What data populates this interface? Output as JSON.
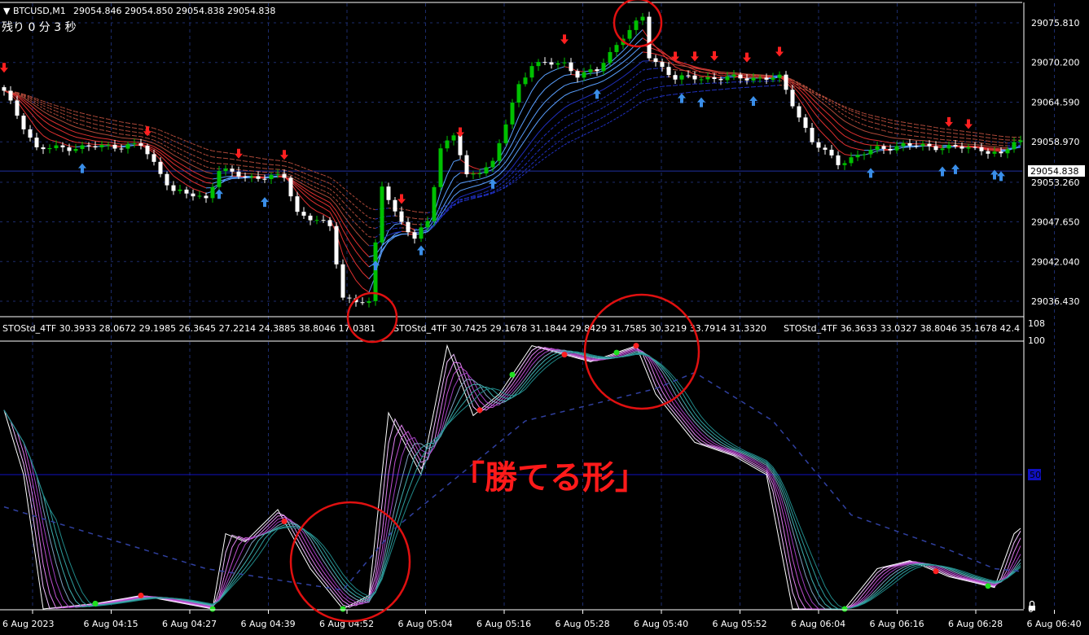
{
  "header": {
    "symbol": "▼ BTCUSD,M1",
    "ohlc": "29054.846 29054.850 29054.838 29054.838",
    "timer": "残り 0 分 3 秒"
  },
  "indicator_header": {
    "labels": [
      "STOStd_4TF 30.3933 28.0672 29.1985 26.3645 27.2214 24.3885 38.8046 17.0381",
      "STOStd_4TF 30.7425 29.1678 31.1844 29.8429 31.7585 30.3219 33.7914 31.3320",
      "STOStd_4TF 36.3633 33.0327 38.8046 35.1678 42.4"
    ]
  },
  "annotation": "「勝てる形」",
  "colors": {
    "background": "#000000",
    "bull_candle": "#00c000",
    "bear_candle": "#ffffff",
    "sell_arrow": "#ff2020",
    "buy_arrow": "#3a8ee8",
    "grid": "#1c2c6c",
    "highlight_circle": "#e01010",
    "annotation": "#ff1a1a"
  },
  "chart_data": [
    {
      "type": "candlestick",
      "symbol": "BTCUSD",
      "timeframe": "M1",
      "y_ticks": [
        "29075.810",
        "29070.200",
        "29064.590",
        "29058.970",
        "29053.260",
        "29047.650",
        "29042.040",
        "29036.430"
      ],
      "ylim": [
        29036.43,
        29075.81
      ],
      "current_price": "29054.838",
      "x_ticks": [
        "6 Aug 2023",
        "6 Aug 04:15",
        "6 Aug 04:27",
        "6 Aug 04:39",
        "6 Aug 04:52",
        "6 Aug 05:04",
        "6 Aug 05:16",
        "6 Aug 05:28",
        "6 Aug 05:40",
        "6 Aug 05:52",
        "6 Aug 06:04",
        "6 Aug 06:16",
        "6 Aug 06:28",
        "6 Aug 06:40"
      ],
      "close_samples": [
        [
          0,
          29066
        ],
        [
          5,
          29058
        ],
        [
          21,
          29058.5
        ],
        [
          26,
          29052
        ],
        [
          31,
          29051
        ],
        [
          33,
          29055
        ],
        [
          37,
          29054
        ],
        [
          43,
          29054
        ],
        [
          45,
          29049
        ],
        [
          50,
          29047
        ],
        [
          52,
          29037
        ],
        [
          56,
          29036
        ],
        [
          58,
          29053
        ],
        [
          60,
          29049
        ],
        [
          63,
          29045
        ],
        [
          65,
          29048
        ],
        [
          67,
          29058
        ],
        [
          69,
          29060
        ],
        [
          71,
          29054
        ],
        [
          75,
          29056
        ],
        [
          79,
          29067
        ],
        [
          81,
          29070
        ],
        [
          86,
          29070
        ],
        [
          88,
          29068.5
        ],
        [
          91,
          29069
        ],
        [
          95,
          29074
        ],
        [
          98,
          29076.5
        ],
        [
          99,
          29071
        ],
        [
          103,
          29068
        ],
        [
          108,
          29068
        ],
        [
          113,
          29068
        ],
        [
          119,
          29068
        ],
        [
          124,
          29059
        ],
        [
          128,
          29056
        ],
        [
          134,
          29058
        ],
        [
          138,
          29058.5
        ],
        [
          150,
          29058
        ],
        [
          153,
          29057
        ],
        [
          155,
          29059
        ]
      ],
      "sell_signals": [
        0,
        22,
        36,
        43,
        61,
        70,
        86,
        98,
        103,
        106,
        109,
        114,
        119,
        145,
        148
      ],
      "buy_signals": [
        12,
        33,
        40,
        57,
        64,
        75,
        91,
        104,
        107,
        115,
        133,
        144,
        146,
        152,
        153
      ]
    },
    {
      "type": "line",
      "name": "STOStd_4TF",
      "ylim": [
        0,
        108
      ],
      "y_ticks": [
        "108",
        "100",
        "50",
        "0"
      ],
      "main_samples": [
        [
          0,
          74
        ],
        [
          3,
          50
        ],
        [
          6,
          0
        ],
        [
          14,
          2
        ],
        [
          21,
          5
        ],
        [
          32,
          0
        ],
        [
          34,
          28
        ],
        [
          37,
          25
        ],
        [
          42,
          37
        ],
        [
          47,
          15
        ],
        [
          52,
          0
        ],
        [
          56,
          5
        ],
        [
          59,
          73
        ],
        [
          64,
          50
        ],
        [
          68,
          98
        ],
        [
          72,
          72
        ],
        [
          76,
          80
        ],
        [
          81,
          98
        ],
        [
          90,
          92
        ],
        [
          97,
          98
        ],
        [
          100,
          80
        ],
        [
          106,
          62
        ],
        [
          112,
          57
        ],
        [
          117,
          50
        ],
        [
          121,
          0
        ],
        [
          129,
          0
        ],
        [
          134,
          15
        ],
        [
          139,
          18
        ],
        [
          145,
          12
        ],
        [
          152,
          8
        ],
        [
          155,
          28
        ],
        [
          156,
          30
        ]
      ],
      "slow_samples": [
        [
          0,
          38
        ],
        [
          31,
          15
        ],
        [
          52,
          7
        ],
        [
          60,
          30
        ],
        [
          80,
          70
        ],
        [
          100,
          82
        ],
        [
          106,
          88
        ],
        [
          118,
          70
        ],
        [
          130,
          35
        ],
        [
          145,
          22
        ],
        [
          152,
          15
        ],
        [
          156,
          14
        ]
      ],
      "cross_up_dots": [
        14,
        32,
        52,
        78,
        94,
        129,
        151
      ],
      "cross_down_dots": [
        21,
        43,
        73,
        86,
        97,
        143
      ]
    }
  ]
}
